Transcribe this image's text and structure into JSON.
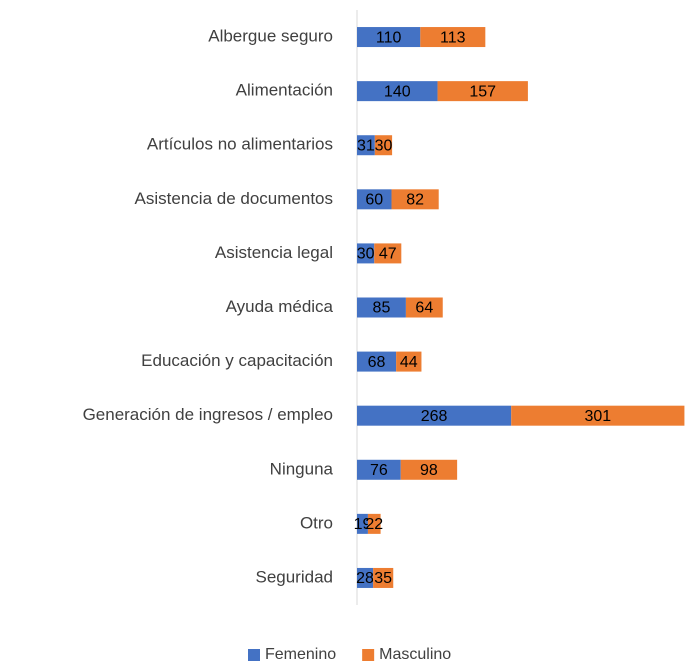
{
  "chart_data": {
    "type": "bar",
    "orientation": "horizontal",
    "stacked": true,
    "categories": [
      "Albergue seguro",
      "Alimentación",
      "Artículos no alimentarios",
      "Asistencia de documentos",
      "Asistencia legal",
      "Ayuda médica",
      "Educación y capacitación",
      "Generación de ingresos / empleo",
      "Ninguna",
      "Otro",
      "Seguridad"
    ],
    "series": [
      {
        "name": "Femenino",
        "color": "#4472c4",
        "values": [
          110,
          140,
          31,
          60,
          30,
          85,
          68,
          268,
          76,
          19,
          28
        ]
      },
      {
        "name": "Masculino",
        "color": "#ed7d31",
        "values": [
          113,
          157,
          30,
          82,
          47,
          64,
          44,
          301,
          98,
          22,
          35
        ]
      }
    ],
    "xlim": [
      0,
      570
    ],
    "legend": "bottom"
  }
}
